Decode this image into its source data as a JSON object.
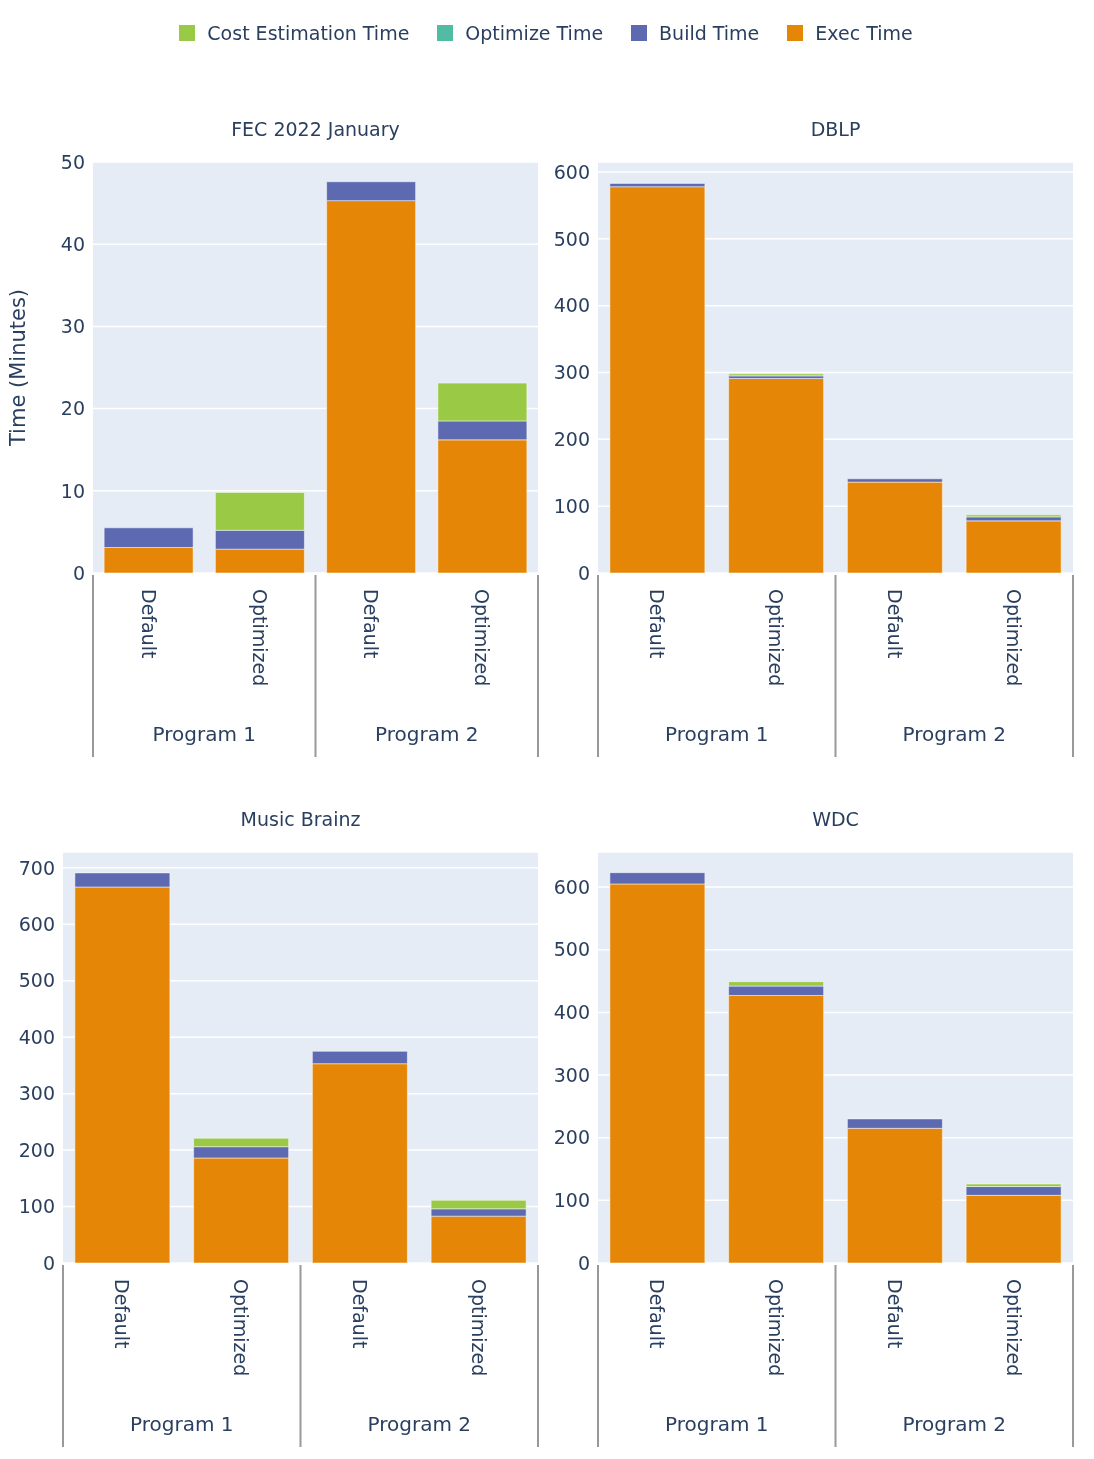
{
  "chart_data": [
    {
      "type": "bar",
      "title": "FEC 2022 January",
      "ylabel": "Time (Minutes)",
      "categories": [
        "Default",
        "Optimized",
        "Default",
        "Optimized"
      ],
      "annotations": [
        "Program 1",
        "Program 2"
      ],
      "stacked": true,
      "legend": "top",
      "grid": "y",
      "ylim": [
        0,
        50
      ],
      "yticks": [
        0,
        10,
        20,
        30,
        40,
        50
      ],
      "series": [
        {
          "name": "Exec Time",
          "color": "#e58606",
          "values": [
            3.1,
            2.9,
            45.3,
            16.2
          ]
        },
        {
          "name": "Build Time",
          "color": "#5d69b1",
          "values": [
            2.4,
            2.3,
            2.3,
            2.3
          ]
        },
        {
          "name": "Optimize Time",
          "color": "#52bca3",
          "values": [
            0,
            0,
            0,
            0
          ]
        },
        {
          "name": "Cost Estimation Time",
          "color": "#99c945",
          "values": [
            0,
            4.6,
            0,
            4.6
          ]
        }
      ]
    },
    {
      "type": "bar",
      "title": "DBLP",
      "categories": [
        "Default",
        "Optimized",
        "Default",
        "Optimized"
      ],
      "annotations": [
        "Program 1",
        "Program 2"
      ],
      "stacked": true,
      "grid": "y",
      "ylim": [
        0,
        615
      ],
      "yticks": [
        0,
        100,
        200,
        300,
        400,
        500,
        600
      ],
      "series": [
        {
          "color": "#e58606",
          "values": [
            578,
            291,
            136,
            78
          ]
        },
        {
          "color": "#5d69b1",
          "values": [
            5,
            4,
            5,
            6
          ]
        },
        {
          "color": "#52bca3",
          "values": [
            0,
            0,
            0,
            0
          ]
        },
        {
          "color": "#99c945",
          "values": [
            0,
            3,
            0,
            3
          ]
        }
      ]
    },
    {
      "type": "bar",
      "title": "Music Brainz",
      "categories": [
        "Default",
        "Optimized",
        "Default",
        "Optimized"
      ],
      "annotations": [
        "Program 1",
        "Program 2"
      ],
      "stacked": true,
      "grid": "y",
      "ylim": [
        0,
        728
      ],
      "yticks": [
        0,
        100,
        200,
        300,
        400,
        500,
        600,
        700
      ],
      "series": [
        {
          "color": "#e58606",
          "values": [
            666,
            186,
            353,
            83
          ]
        },
        {
          "color": "#5d69b1",
          "values": [
            25,
            20,
            22,
            13
          ]
        },
        {
          "color": "#52bca3",
          "values": [
            0,
            0,
            0,
            0
          ]
        },
        {
          "color": "#99c945",
          "values": [
            0,
            15,
            0,
            15
          ]
        }
      ]
    },
    {
      "type": "bar",
      "title": "WDC",
      "categories": [
        "Default",
        "Optimized",
        "Default",
        "Optimized"
      ],
      "annotations": [
        "Program 1",
        "Program 2"
      ],
      "stacked": true,
      "grid": "y",
      "ylim": [
        0,
        656
      ],
      "yticks": [
        0,
        100,
        200,
        300,
        400,
        500,
        600
      ],
      "series": [
        {
          "color": "#e58606",
          "values": [
            605,
            427,
            215,
            108
          ]
        },
        {
          "color": "#5d69b1",
          "values": [
            18,
            15,
            15,
            14
          ]
        },
        {
          "color": "#52bca3",
          "values": [
            0,
            0,
            0,
            0
          ]
        },
        {
          "color": "#99c945",
          "values": [
            0,
            7,
            0,
            4
          ]
        }
      ]
    }
  ]
}
